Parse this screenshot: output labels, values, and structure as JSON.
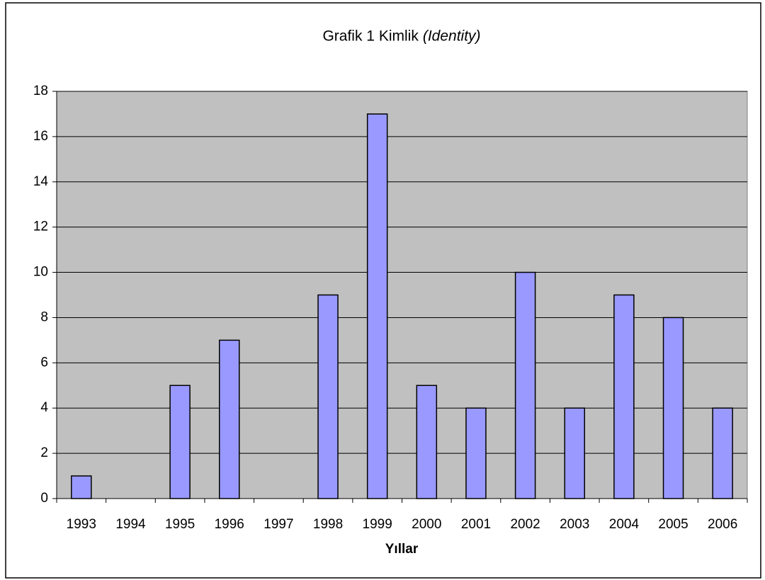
{
  "chart_data": {
    "type": "bar",
    "title": "Grafik 1 Kimlik",
    "title_italic": "(Identity)",
    "x_label": "Yıllar",
    "categories": [
      "1993",
      "1994",
      "1995",
      "1996",
      "1997",
      "1998",
      "1999",
      "2000",
      "2001",
      "2002",
      "2003",
      "2004",
      "2005",
      "2006"
    ],
    "values": [
      1,
      0,
      5,
      7,
      0,
      9,
      17,
      5,
      4,
      10,
      4,
      9,
      8,
      4
    ],
    "color": "#9999ff",
    "ylim": [
      0,
      18
    ],
    "yticks": [
      0,
      2,
      4,
      6,
      8,
      10,
      12,
      14,
      16,
      18
    ],
    "grid": true
  }
}
